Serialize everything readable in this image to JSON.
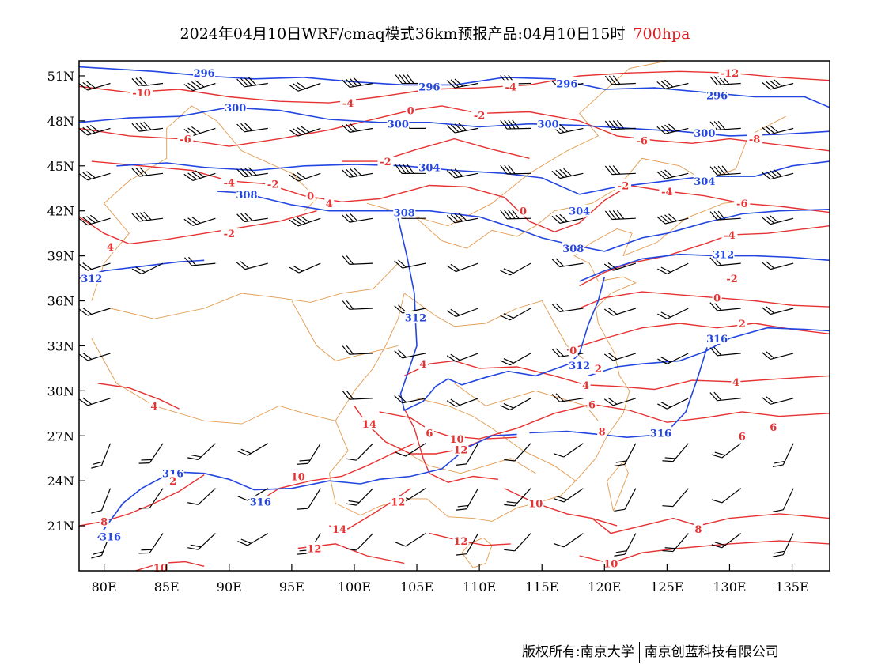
{
  "title": {
    "main": "2024年04月10日WRF/cmaq模式36km预报产品:04月10日15时",
    "level": "700hpa"
  },
  "axes": {
    "lat_labels": [
      "51N",
      "48N",
      "45N",
      "42N",
      "39N",
      "36N",
      "33N",
      "30N",
      "27N",
      "24N",
      "21N"
    ],
    "lat_values": [
      51,
      48,
      45,
      42,
      39,
      36,
      33,
      30,
      27,
      24,
      21
    ],
    "lon_labels": [
      "80E",
      "85E",
      "90E",
      "95E",
      "100E",
      "105E",
      "110E",
      "115E",
      "120E",
      "125E",
      "130E",
      "135E"
    ],
    "lon_values": [
      80,
      85,
      90,
      95,
      100,
      105,
      110,
      115,
      120,
      125,
      130,
      135
    ],
    "extent": {
      "lon_min": 78,
      "lon_max": 138,
      "lat_min": 18,
      "lat_max": 52
    }
  },
  "colors": {
    "geopotential": "#2346e0",
    "temperature": "#e63232",
    "boundary": "#e0913c",
    "wind": "#000000",
    "frame": "#000000"
  },
  "geopotential_labels": [
    {
      "text": "296",
      "lon": 88.0,
      "lat": 51.2
    },
    {
      "text": "296",
      "lon": 106.0,
      "lat": 50.3
    },
    {
      "text": "296",
      "lon": 117.0,
      "lat": 50.5
    },
    {
      "text": "296",
      "lon": 129.0,
      "lat": 49.7
    },
    {
      "text": "300",
      "lon": 90.5,
      "lat": 48.9
    },
    {
      "text": "300",
      "lon": 103.5,
      "lat": 47.8
    },
    {
      "text": "300",
      "lon": 115.5,
      "lat": 47.8
    },
    {
      "text": "300",
      "lon": 128.0,
      "lat": 47.2
    },
    {
      "text": "304",
      "lon": 106.0,
      "lat": 44.9
    },
    {
      "text": "304",
      "lon": 118.0,
      "lat": 42.0
    },
    {
      "text": "304",
      "lon": 128.0,
      "lat": 44.0
    },
    {
      "text": "308",
      "lon": 91.4,
      "lat": 43.1
    },
    {
      "text": "308",
      "lon": 104.0,
      "lat": 41.9
    },
    {
      "text": "308",
      "lon": 117.5,
      "lat": 39.5
    },
    {
      "text": "312",
      "lon": 79.0,
      "lat": 37.5
    },
    {
      "text": "312",
      "lon": 104.9,
      "lat": 34.9
    },
    {
      "text": "312",
      "lon": 118.0,
      "lat": 31.7
    },
    {
      "text": "312",
      "lon": 129.5,
      "lat": 39.1
    },
    {
      "text": "316",
      "lon": 129.0,
      "lat": 33.5
    },
    {
      "text": "316",
      "lon": 124.5,
      "lat": 27.2
    },
    {
      "text": "316",
      "lon": 85.5,
      "lat": 24.5
    },
    {
      "text": "316",
      "lon": 92.5,
      "lat": 22.6
    },
    {
      "text": "316",
      "lon": 80.5,
      "lat": 20.3
    }
  ],
  "temperature_labels": [
    {
      "text": "-10",
      "lon": 83.0,
      "lat": 49.9
    },
    {
      "text": "-6",
      "lon": 86.5,
      "lat": 46.8
    },
    {
      "text": "-4",
      "lon": 99.5,
      "lat": 49.2
    },
    {
      "text": "-4",
      "lon": 112.5,
      "lat": 50.3
    },
    {
      "text": "0",
      "lon": 104.5,
      "lat": 48.7
    },
    {
      "text": "-2",
      "lon": 110.0,
      "lat": 48.4
    },
    {
      "text": "-2",
      "lon": 102.5,
      "lat": 45.3
    },
    {
      "text": "-4",
      "lon": 90.0,
      "lat": 43.9
    },
    {
      "text": "-2",
      "lon": 93.5,
      "lat": 43.8
    },
    {
      "text": "0",
      "lon": 96.5,
      "lat": 43.0
    },
    {
      "text": "4",
      "lon": 98.0,
      "lat": 42.5
    },
    {
      "text": "0",
      "lon": 113.5,
      "lat": 42.0
    },
    {
      "text": "-2",
      "lon": 90.0,
      "lat": 40.5
    },
    {
      "text": "4",
      "lon": 80.5,
      "lat": 39.6
    },
    {
      "text": "-2",
      "lon": 121.5,
      "lat": 43.7
    },
    {
      "text": "-6",
      "lon": 123.0,
      "lat": 46.7
    },
    {
      "text": "-8",
      "lon": 132.0,
      "lat": 46.8
    },
    {
      "text": "-12",
      "lon": 130.0,
      "lat": 51.2
    },
    {
      "text": "-4",
      "lon": 125.0,
      "lat": 43.3
    },
    {
      "text": "-6",
      "lon": 131.0,
      "lat": 42.5
    },
    {
      "text": "-4",
      "lon": 130.0,
      "lat": 40.4
    },
    {
      "text": "-2",
      "lon": 130.2,
      "lat": 37.5
    },
    {
      "text": "0",
      "lon": 129.0,
      "lat": 36.2
    },
    {
      "text": "2",
      "lon": 131.0,
      "lat": 34.5
    },
    {
      "text": "0",
      "lon": 117.5,
      "lat": 32.7
    },
    {
      "text": "2",
      "lon": 119.5,
      "lat": 31.5
    },
    {
      "text": "4",
      "lon": 118.5,
      "lat": 30.4
    },
    {
      "text": "4",
      "lon": 130.5,
      "lat": 30.6
    },
    {
      "text": "6",
      "lon": 119.0,
      "lat": 29.1
    },
    {
      "text": "8",
      "lon": 119.8,
      "lat": 27.3
    },
    {
      "text": "6",
      "lon": 131.0,
      "lat": 27.0
    },
    {
      "text": "6",
      "lon": 133.5,
      "lat": 27.6
    },
    {
      "text": "4",
      "lon": 105.5,
      "lat": 31.8
    },
    {
      "text": "14",
      "lon": 101.2,
      "lat": 27.8
    },
    {
      "text": "6",
      "lon": 106.0,
      "lat": 27.2
    },
    {
      "text": "10",
      "lon": 108.2,
      "lat": 26.8
    },
    {
      "text": "12",
      "lon": 108.5,
      "lat": 26.1
    },
    {
      "text": "10",
      "lon": 95.5,
      "lat": 24.3
    },
    {
      "text": "12",
      "lon": 103.5,
      "lat": 22.6
    },
    {
      "text": "10",
      "lon": 114.5,
      "lat": 22.5
    },
    {
      "text": "12",
      "lon": 108.5,
      "lat": 20.0
    },
    {
      "text": "14",
      "lon": 98.8,
      "lat": 20.8
    },
    {
      "text": "12",
      "lon": 96.8,
      "lat": 19.5
    },
    {
      "text": "8",
      "lon": 127.5,
      "lat": 20.8
    },
    {
      "text": "10",
      "lon": 84.5,
      "lat": 18.2
    },
    {
      "text": "10",
      "lon": 120.5,
      "lat": 18.5
    },
    {
      "text": "8",
      "lon": 80.0,
      "lat": 21.3
    },
    {
      "text": "2",
      "lon": 85.5,
      "lat": 24.0
    },
    {
      "text": "4",
      "lon": 84.0,
      "lat": 29.0
    }
  ],
  "footer": {
    "copyright": "版权所有:南京大学",
    "company": "南京创蓝科技有限公司"
  }
}
